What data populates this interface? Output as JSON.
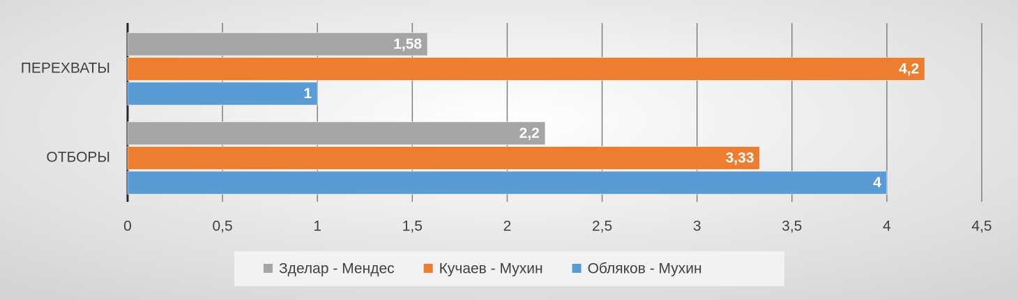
{
  "chart_data": {
    "type": "hbar",
    "categories": [
      "ПЕРЕХВАТЫ",
      "ОТБОРЫ"
    ],
    "series": [
      {
        "name": "Зделар - Мендес",
        "color": "#a5a5a5",
        "values": [
          1.58,
          2.2
        ],
        "value_labels": [
          "1,58",
          "2,2"
        ]
      },
      {
        "name": "Кучаев - Мухин",
        "color": "#ed7d31",
        "values": [
          4.2,
          3.33
        ],
        "value_labels": [
          "4,2",
          "3,33"
        ]
      },
      {
        "name": "Обляков - Мухин",
        "color": "#5b9bd5",
        "values": [
          1,
          4
        ],
        "value_labels": [
          "1",
          "4"
        ]
      }
    ],
    "xlim": [
      0,
      4.5
    ],
    "xticks": [
      0,
      {
        "value": 0.5,
        "label": "0,5"
      },
      1,
      {
        "value": 1.5,
        "label": "1,5"
      },
      2,
      {
        "value": 2.5,
        "label": "2,5"
      },
      3,
      {
        "value": 3.5,
        "label": "3,5"
      },
      4,
      {
        "value": 4.5,
        "label": "4,5"
      }
    ],
    "grid": true,
    "legend": "bottom"
  }
}
